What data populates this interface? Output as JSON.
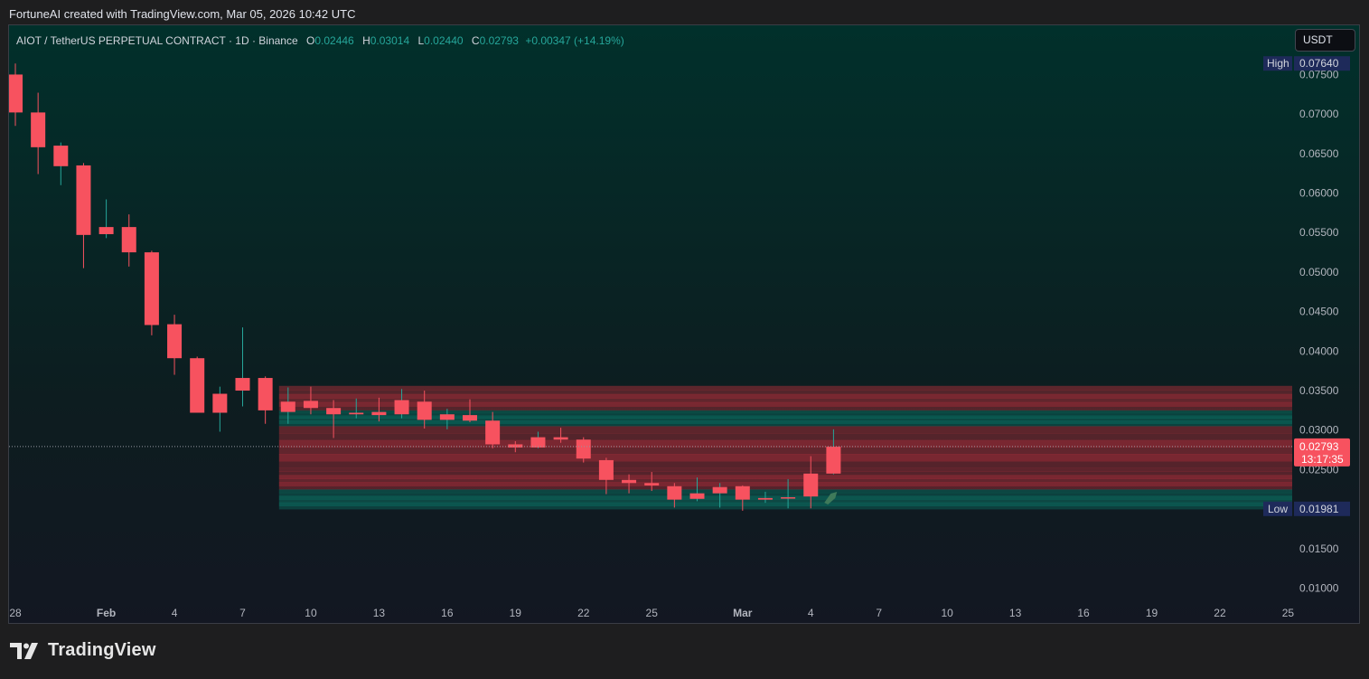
{
  "header": {
    "attribution": "FortuneAI created with TradingView.com, Mar 05, 2026 10:42 UTC",
    "symbol": "AIOT / TetherUS PERPETUAL CONTRACT · 1D · Binance",
    "ohlc": {
      "o_label": "O",
      "o": "0.02446",
      "h_label": "H",
      "h": "0.03014",
      "l_label": "L",
      "l": "0.02440",
      "c_label": "C",
      "c": "0.02793",
      "change": "+0.00347 (+14.19%)"
    },
    "currency": "USDT"
  },
  "footer": {
    "brand": "TradingView"
  },
  "colors": {
    "up": "#26a69a",
    "down": "#f7525f",
    "background": "#131722"
  },
  "chart_data": {
    "type": "candlestick",
    "ylim": [
      0.008,
      0.081
    ],
    "y_ticks": [
      "0.07500",
      "0.07000",
      "0.06500",
      "0.06000",
      "0.05500",
      "0.05000",
      "0.04500",
      "0.04000",
      "0.03500",
      "0.03000",
      "0.02500",
      "0.01500",
      "0.01000"
    ],
    "x_ticks": [
      {
        "i": 0,
        "label": "28"
      },
      {
        "i": 4,
        "label": "Feb"
      },
      {
        "i": 7,
        "label": "4"
      },
      {
        "i": 10,
        "label": "7"
      },
      {
        "i": 13,
        "label": "10"
      },
      {
        "i": 16,
        "label": "13"
      },
      {
        "i": 19,
        "label": "16"
      },
      {
        "i": 22,
        "label": "19"
      },
      {
        "i": 25,
        "label": "22"
      },
      {
        "i": 28,
        "label": "25"
      },
      {
        "i": 32,
        "label": "Mar"
      },
      {
        "i": 35,
        "label": "4"
      },
      {
        "i": 38,
        "label": "7"
      },
      {
        "i": 41,
        "label": "10"
      },
      {
        "i": 44,
        "label": "13"
      },
      {
        "i": 47,
        "label": "16"
      },
      {
        "i": 50,
        "label": "19"
      },
      {
        "i": 53,
        "label": "22"
      },
      {
        "i": 56,
        "label": "25"
      }
    ],
    "candles": [
      {
        "o": 0.075,
        "h": 0.0764,
        "l": 0.0685,
        "c": 0.0702
      },
      {
        "o": 0.0702,
        "h": 0.0727,
        "l": 0.0624,
        "c": 0.0658
      },
      {
        "o": 0.0634,
        "h": 0.0664,
        "l": 0.061,
        "c": 0.066
      },
      {
        "o": 0.0635,
        "h": 0.0638,
        "l": 0.0505,
        "c": 0.0547
      },
      {
        "o": 0.0548,
        "h": 0.0592,
        "l": 0.0543,
        "c": 0.0557
      },
      {
        "o": 0.0557,
        "h": 0.0573,
        "l": 0.0507,
        "c": 0.0525
      },
      {
        "o": 0.0525,
        "h": 0.0527,
        "l": 0.042,
        "c": 0.0433
      },
      {
        "o": 0.0434,
        "h": 0.0446,
        "l": 0.037,
        "c": 0.0391
      },
      {
        "o": 0.0391,
        "h": 0.0393,
        "l": 0.0322,
        "c": 0.0322
      },
      {
        "o": 0.0322,
        "h": 0.0355,
        "l": 0.0298,
        "c": 0.0346
      },
      {
        "o": 0.035,
        "h": 0.043,
        "l": 0.033,
        "c": 0.0366
      },
      {
        "o": 0.0366,
        "h": 0.0368,
        "l": 0.0308,
        "c": 0.0325
      },
      {
        "o": 0.0323,
        "h": 0.0354,
        "l": 0.0308,
        "c": 0.0336
      },
      {
        "o": 0.0337,
        "h": 0.0355,
        "l": 0.032,
        "c": 0.0328
      },
      {
        "o": 0.0328,
        "h": 0.0338,
        "l": 0.029,
        "c": 0.032
      },
      {
        "o": 0.032,
        "h": 0.034,
        "l": 0.0315,
        "c": 0.0322
      },
      {
        "o": 0.0323,
        "h": 0.0341,
        "l": 0.0311,
        "c": 0.0319
      },
      {
        "o": 0.032,
        "h": 0.0352,
        "l": 0.0315,
        "c": 0.0338
      },
      {
        "o": 0.0336,
        "h": 0.035,
        "l": 0.0302,
        "c": 0.0313
      },
      {
        "o": 0.0313,
        "h": 0.0327,
        "l": 0.0301,
        "c": 0.032
      },
      {
        "o": 0.0319,
        "h": 0.0339,
        "l": 0.031,
        "c": 0.0312
      },
      {
        "o": 0.0312,
        "h": 0.0323,
        "l": 0.0277,
        "c": 0.0282
      },
      {
        "o": 0.0282,
        "h": 0.0286,
        "l": 0.0272,
        "c": 0.0278
      },
      {
        "o": 0.0278,
        "h": 0.0298,
        "l": 0.0277,
        "c": 0.0291
      },
      {
        "o": 0.0291,
        "h": 0.0303,
        "l": 0.0284,
        "c": 0.0288
      },
      {
        "o": 0.0288,
        "h": 0.0291,
        "l": 0.0259,
        "c": 0.0264
      },
      {
        "o": 0.0262,
        "h": 0.0265,
        "l": 0.0219,
        "c": 0.0237
      },
      {
        "o": 0.0237,
        "h": 0.0244,
        "l": 0.022,
        "c": 0.0233
      },
      {
        "o": 0.0233,
        "h": 0.0247,
        "l": 0.0223,
        "c": 0.023
      },
      {
        "o": 0.0229,
        "h": 0.0233,
        "l": 0.0202,
        "c": 0.0212
      },
      {
        "o": 0.0213,
        "h": 0.024,
        "l": 0.021,
        "c": 0.022
      },
      {
        "o": 0.022,
        "h": 0.0233,
        "l": 0.0202,
        "c": 0.0228
      },
      {
        "o": 0.0229,
        "h": 0.023,
        "l": 0.0198,
        "c": 0.0212
      },
      {
        "o": 0.0212,
        "h": 0.0222,
        "l": 0.0208,
        "c": 0.0214
      },
      {
        "o": 0.0214,
        "h": 0.0238,
        "l": 0.0201,
        "c": 0.0215
      },
      {
        "o": 0.0245,
        "h": 0.0267,
        "l": 0.0201,
        "c": 0.0216
      },
      {
        "o": 0.0245,
        "h": 0.0301,
        "l": 0.0244,
        "c": 0.0279
      }
    ],
    "zones": [
      {
        "from": 0.0325,
        "to": 0.0356,
        "color": "#f23645"
      },
      {
        "from": 0.0305,
        "to": 0.0325,
        "color": "#089981"
      },
      {
        "from": 0.0252,
        "to": 0.0305,
        "color": "#f23645"
      },
      {
        "from": 0.0225,
        "to": 0.0252,
        "color": "#f23645"
      },
      {
        "from": 0.02,
        "to": 0.0225,
        "color": "#089981"
      }
    ],
    "last_price": {
      "value": 0.02793,
      "label": "0.02793",
      "countdown": "13:17:35"
    },
    "high": {
      "value": 0.0764,
      "tag": "High",
      "label": "0.07640"
    },
    "low": {
      "value": 0.01981,
      "tag": "Low",
      "label": "0.01981"
    }
  }
}
